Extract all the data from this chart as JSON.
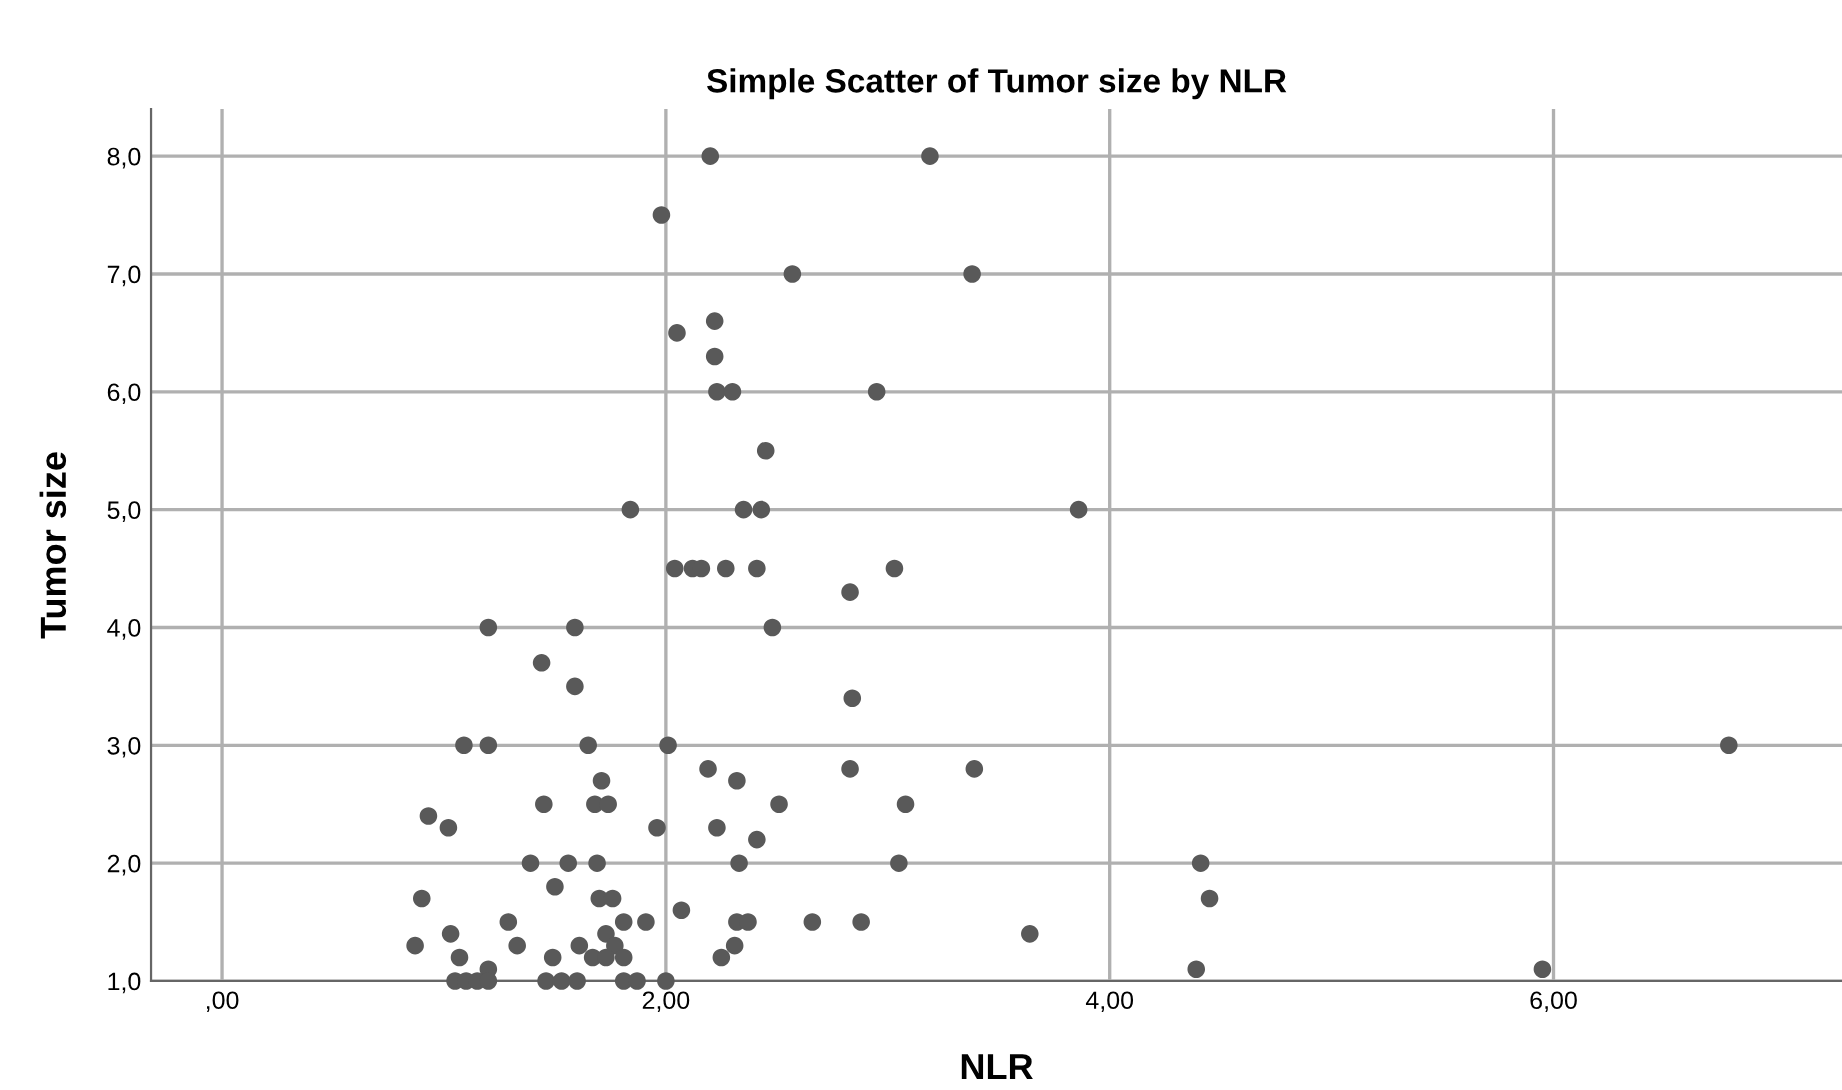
{
  "chart_data": {
    "type": "scatter",
    "title": "Simple Scatter of Tumor size by NLR",
    "xlabel": "NLR",
    "ylabel": "Tumor size",
    "xlim": [
      -0.32,
      7.3
    ],
    "xticks": [
      {
        "value": 0,
        "label": ",00"
      },
      {
        "value": 2,
        "label": "2,00"
      },
      {
        "value": 4,
        "label": "4,00"
      },
      {
        "value": 6,
        "label": "6,00"
      }
    ],
    "ylim": [
      1.0,
      8.4
    ],
    "yticks": [
      {
        "value": 1,
        "label": "1,0"
      },
      {
        "value": 2,
        "label": "2,0"
      },
      {
        "value": 3,
        "label": "3,0"
      },
      {
        "value": 4,
        "label": "4,0"
      },
      {
        "value": 5,
        "label": "5,0"
      },
      {
        "value": 6,
        "label": "6,0"
      },
      {
        "value": 7,
        "label": "7,0"
      },
      {
        "value": 8,
        "label": "8,0"
      }
    ],
    "grid": true,
    "marker": "circle",
    "legend": false,
    "series": [
      {
        "color": "#595959",
        "x": [
          2.2,
          3.19,
          1.98,
          2.57,
          3.38,
          2.05,
          2.22,
          2.22,
          2.23,
          2.3,
          2.95,
          2.45,
          1.84,
          2.35,
          2.43,
          3.86,
          2.04,
          2.12,
          2.16,
          2.27,
          2.41,
          3.03,
          2.83,
          2.48,
          1.2,
          1.59,
          1.44,
          1.59,
          2.84,
          1.09,
          1.2,
          1.65,
          2.01,
          2.19,
          2.32,
          2.83,
          1.45,
          0.93,
          1.02,
          1.68,
          1.74,
          2.51,
          3.08,
          1.71,
          1.96,
          2.23,
          2.41,
          1.39,
          1.56,
          1.69,
          2.33,
          3.05,
          1.5,
          0.9,
          1.7,
          1.76,
          2.07,
          1.29,
          1.81,
          1.91,
          2.32,
          2.37,
          2.66,
          2.88,
          1.03,
          1.73,
          0.87,
          1.33,
          1.61,
          1.77,
          2.31,
          1.07,
          1.49,
          1.67,
          1.73,
          1.81,
          2.25,
          1.2,
          1.05,
          1.1,
          1.15,
          1.2,
          1.46,
          1.53,
          1.6,
          1.81,
          1.87,
          2.0,
          4.41,
          4.45,
          4.39,
          3.64,
          3.39,
          5.95,
          6.79
        ],
        "values": [
          8.0,
          8.0,
          7.5,
          7.0,
          7.0,
          6.5,
          6.6,
          6.3,
          6.0,
          6.0,
          6.0,
          5.5,
          5.0,
          5.0,
          5.0,
          5.0,
          4.5,
          4.5,
          4.5,
          4.5,
          4.5,
          4.5,
          4.3,
          4.0,
          4.0,
          4.0,
          3.7,
          3.5,
          3.4,
          3.0,
          3.0,
          3.0,
          3.0,
          2.8,
          2.7,
          2.8,
          2.5,
          2.4,
          2.3,
          2.5,
          2.5,
          2.5,
          2.5,
          2.7,
          2.3,
          2.3,
          2.2,
          2.0,
          2.0,
          2.0,
          2.0,
          2.0,
          1.8,
          1.7,
          1.7,
          1.7,
          1.6,
          1.5,
          1.5,
          1.5,
          1.5,
          1.5,
          1.5,
          1.5,
          1.4,
          1.4,
          1.3,
          1.3,
          1.3,
          1.3,
          1.3,
          1.2,
          1.2,
          1.2,
          1.2,
          1.2,
          1.2,
          1.1,
          1.0,
          1.0,
          1.0,
          1.0,
          1.0,
          1.0,
          1.0,
          1.0,
          1.0,
          1.0,
          2.0,
          1.7,
          1.1,
          1.4,
          2.8,
          1.1,
          3.0
        ]
      }
    ]
  }
}
